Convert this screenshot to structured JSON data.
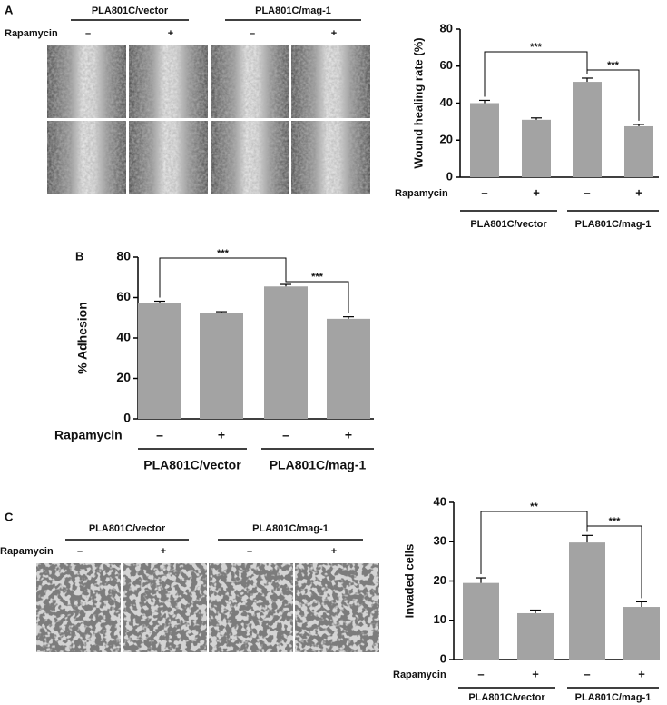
{
  "panel_labels": [
    "A",
    "B",
    "C"
  ],
  "image_panels": [
    {
      "groups": [
        "PLA801C/vector",
        "PLA801C/mag-1"
      ],
      "row_label": "Rapamycin",
      "treatments": [
        "–",
        "+",
        "–",
        "+"
      ]
    },
    {
      "groups": [
        "PLA801C/vector",
        "PLA801C/mag-1"
      ],
      "row_label": "Rapamycin",
      "treatments": [
        "–",
        "+",
        "–",
        "+"
      ]
    }
  ],
  "chart_data": [
    {
      "type": "bar",
      "ylabel": "Wound healing rate (%)",
      "row_label": "Rapamycin",
      "categories": [
        "–",
        "+",
        "–",
        "+"
      ],
      "groups": [
        "PLA801C/vector",
        "PLA801C/mag-1"
      ],
      "values": [
        40,
        31,
        51.5,
        27.5
      ],
      "errors": [
        1.5,
        1,
        2,
        1
      ],
      "color": "#a3a3a3",
      "ylim": [
        0,
        80
      ],
      "yticks": [
        0,
        20,
        40,
        60,
        80
      ],
      "significance": [
        {
          "text": "***",
          "from": 0,
          "to": 2
        },
        {
          "text": "***",
          "from": 2,
          "to": 3
        }
      ]
    },
    {
      "type": "bar",
      "ylabel": "% Adhesion",
      "row_label": "Rapamycin",
      "categories": [
        "–",
        "+",
        "–",
        "+"
      ],
      "groups": [
        "PLA801C/vector",
        "PLA801C/mag-1"
      ],
      "values": [
        57.5,
        52.5,
        65.5,
        49.5
      ],
      "errors": [
        0.7,
        0.5,
        1,
        1
      ],
      "color": "#a3a3a3",
      "ylim": [
        0,
        80
      ],
      "yticks": [
        0,
        20,
        40,
        60,
        80
      ],
      "significance": [
        {
          "text": "***",
          "from": 0,
          "to": 2
        },
        {
          "text": "***",
          "from": 2,
          "to": 3
        }
      ]
    },
    {
      "type": "bar",
      "ylabel": "Invaded cells",
      "row_label": "Rapamycin",
      "categories": [
        "–",
        "+",
        "–",
        "+"
      ],
      "groups": [
        "PLA801C/vector",
        "PLA801C/mag-1"
      ],
      "values": [
        19.5,
        11.8,
        29.8,
        13.4
      ],
      "errors": [
        1.3,
        0.8,
        1.8,
        1.3
      ],
      "color": "#a3a3a3",
      "ylim": [
        0,
        40
      ],
      "yticks": [
        0,
        10,
        20,
        30,
        40
      ],
      "significance": [
        {
          "text": "**",
          "from": 0,
          "to": 2
        },
        {
          "text": "***",
          "from": 2,
          "to": 3
        }
      ]
    }
  ]
}
